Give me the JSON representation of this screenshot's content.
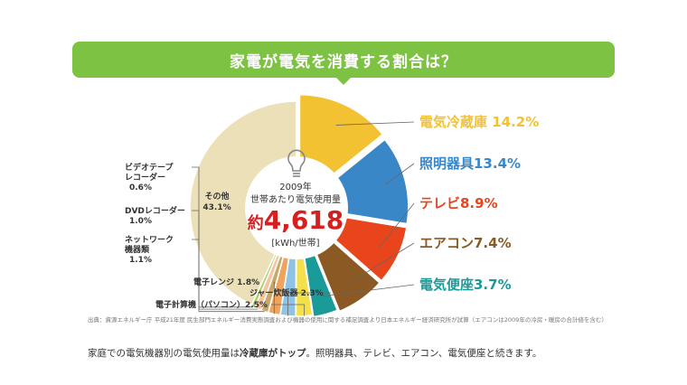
{
  "header": {
    "title": "家電が電気を消費する割合は？"
  },
  "center": {
    "year": "2009年",
    "subtitle": "世帯あたり電気使用量",
    "value_prefix": "約",
    "value": "4,618",
    "unit": "[kWh/世帯]"
  },
  "chart_data": {
    "type": "pie",
    "slices": [
      {
        "label": "電気冷蔵庫",
        "value": 14.2,
        "display": "電気冷蔵庫 14.2%",
        "color": "#f3c232"
      },
      {
        "label": "照明器具",
        "value": 13.4,
        "display": "照明器具13.4%",
        "color": "#3a87c8"
      },
      {
        "label": "テレビ",
        "value": 8.9,
        "display": "テレビ8.9%",
        "color": "#e8451c"
      },
      {
        "label": "エアコン",
        "value": 7.4,
        "display": "エアコン7.4%",
        "color": "#8b5a24"
      },
      {
        "label": "電気便座",
        "value": 3.7,
        "display": "電気便座3.7%",
        "color": "#1a9a99"
      },
      {
        "label": "電子計算機（パソコン）",
        "value": 2.5,
        "display": "電子計算機（パソコン）2.5%",
        "color": "#f4e14a"
      },
      {
        "label": "ジャー炊飯器",
        "value": 2.3,
        "display": "ジャー炊飯器 2.3%",
        "color": "#8ec3e6"
      },
      {
        "label": "電子レンジ",
        "value": 1.8,
        "display": "電子レンジ 1.8%",
        "color": "#f0a35c"
      },
      {
        "label": "ネットワーク機器類",
        "value": 1.1,
        "display": [
          "ネットワーク",
          "機器類",
          "1.1%"
        ],
        "color": "#c8a86a"
      },
      {
        "label": "DVDレコーダー",
        "value": 1.0,
        "display": [
          "DVDレコーダー",
          "1.0%"
        ],
        "color": "#f6c39a"
      },
      {
        "label": "ビデオテープレコーダー",
        "value": 0.6,
        "display": [
          "ビデオテープ",
          "レコーダー",
          "0.6%"
        ],
        "color": "#a9cf68"
      },
      {
        "label": "その他",
        "value": 43.1,
        "display": [
          "その他",
          "43.1%"
        ],
        "color": "#ebe0b7"
      }
    ]
  },
  "source": "出典：資源エネルギー庁 平成21年度 民生部門エネルギー消費実態調査および機器の使用に関する補足調査より日本エネルギー経済研究所が試算（エアコンは2009年の冷房・暖房の合計値を含む）",
  "caption": {
    "pre": "家庭での電気機器別の電気使用量は",
    "bold": "冷蔵庫がトップ",
    "post": "。照明器具、テレビ、エアコン、電気便座と続きます。"
  }
}
